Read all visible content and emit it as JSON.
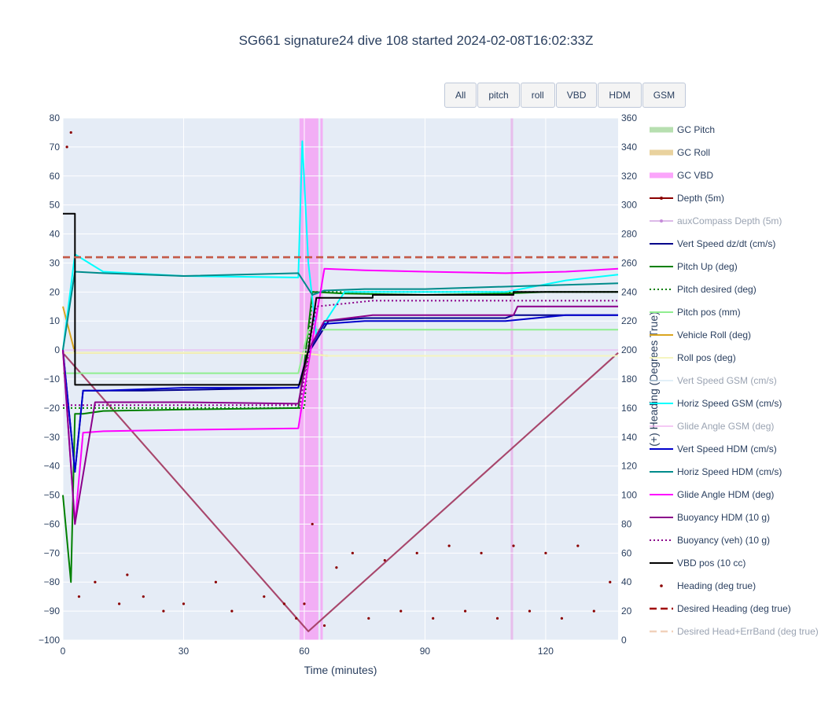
{
  "buttons": [
    "All",
    "pitch",
    "roll",
    "VBD",
    "HDM",
    "GSM"
  ],
  "chart_data": {
    "type": "line",
    "title": "SG661 signature24 dive 108 started 2024-02-08T16:02:33Z",
    "xlabel": "Time (minutes)",
    "ylabel": "",
    "y2label": "(+) Heading (Degrees True)",
    "xlim": [
      0,
      138
    ],
    "ylim": [
      -100,
      80
    ],
    "y2lim": [
      0,
      360
    ],
    "x_ticks": [
      0,
      30,
      60,
      90,
      120
    ],
    "y_ticks": [
      80,
      70,
      60,
      50,
      40,
      30,
      20,
      10,
      0,
      -10,
      -20,
      -30,
      -40,
      -50,
      -60,
      -70,
      -80,
      -90,
      -100
    ],
    "y2_ticks": [
      360,
      340,
      320,
      300,
      280,
      260,
      240,
      220,
      200,
      180,
      160,
      140,
      120,
      100,
      80,
      60,
      40,
      20,
      0
    ],
    "grid": true,
    "legend_position": "right",
    "shaded_bands": [
      {
        "name": "GC VBD",
        "x_start": 58.8,
        "x_end": 63.5,
        "color": "#f5a3f5"
      },
      {
        "name": "GC VBD",
        "x_start": 64.0,
        "x_end": 64.6,
        "color": "#f5a3f5"
      },
      {
        "name": "GC VBD",
        "x_start": 111.3,
        "x_end": 111.9,
        "color": "#e7b5ea"
      }
    ],
    "series": [
      {
        "name": "GC Pitch",
        "style": "band",
        "color": "#b7dfb0"
      },
      {
        "name": "GC Roll",
        "style": "band",
        "color": "#e9d29e"
      },
      {
        "name": "GC VBD",
        "style": "band",
        "color": "#fba5fb"
      },
      {
        "name": "Depth (5m)",
        "style": "line",
        "color": "#8b0000",
        "x": [
          0,
          61,
          138
        ],
        "y": [
          -1,
          -97,
          -1
        ]
      },
      {
        "name": "auxCompass Depth (5m)",
        "style": "line",
        "color": "#c58bd9",
        "dim": true,
        "x": [
          0,
          61,
          138
        ],
        "y": [
          -1,
          -97,
          -1
        ]
      },
      {
        "name": "Vert Speed dz/dt (cm/s)",
        "style": "line",
        "color": "#00008b",
        "x": [
          0,
          3,
          5,
          10,
          20,
          40,
          58.5,
          61,
          66,
          75,
          90,
          110,
          112,
          125,
          138
        ],
        "y": [
          0,
          -42,
          -14,
          -14,
          -14,
          -13.5,
          -13,
          -1,
          10,
          11,
          11,
          11,
          12,
          12,
          12
        ]
      },
      {
        "name": "Pitch Up (deg)",
        "style": "line",
        "color": "#008000",
        "x": [
          0,
          2,
          3,
          5,
          10,
          30,
          58.5,
          60,
          62,
          70,
          90,
          110,
          120,
          138
        ],
        "y": [
          -50,
          -80,
          -22,
          -22,
          -21,
          -20.5,
          -20,
          -5,
          20,
          19.5,
          19,
          19.5,
          20,
          20
        ]
      },
      {
        "name": "Pitch desired (deg)",
        "style": "dotted",
        "color": "#008000",
        "x": [
          0,
          59,
          60,
          62,
          138
        ],
        "y": [
          -20,
          -20,
          -20,
          20,
          20
        ]
      },
      {
        "name": "Pitch pos (mm)",
        "style": "line",
        "color": "#90ee90",
        "x": [
          0,
          3,
          58.5,
          61,
          138
        ],
        "y": [
          -8,
          -8,
          -8,
          7,
          7
        ]
      },
      {
        "name": "Vehicle Roll (deg)",
        "style": "line",
        "color": "#daa520",
        "x": [
          0,
          3,
          20,
          40,
          58.5,
          66,
          90,
          120,
          138
        ],
        "y": [
          15,
          -1,
          -1,
          -1,
          -1,
          -2,
          -2,
          -2,
          -2
        ]
      },
      {
        "name": "Roll pos (deg)",
        "style": "line",
        "color": "#f5f5c0",
        "x": [
          0,
          58.5,
          66,
          138
        ],
        "y": [
          -1,
          -1,
          -2,
          -2
        ]
      },
      {
        "name": "Vert Speed GSM (cm/s)",
        "style": "line",
        "color": "#cfe6f5",
        "dim": true,
        "x": [
          0,
          138
        ],
        "y": [
          0,
          0
        ]
      },
      {
        "name": "Horiz Speed GSM (cm/s)",
        "style": "line",
        "color": "#00ffff",
        "x": [
          0,
          3,
          10,
          30,
          58.5,
          59.5,
          61,
          63,
          70,
          90,
          110,
          125,
          138
        ],
        "y": [
          0,
          33,
          27,
          25.5,
          25,
          72,
          30,
          5,
          20,
          20,
          20,
          24,
          26
        ]
      },
      {
        "name": "Glide Angle GSM (deg)",
        "style": "line",
        "color": "#f0a8f0",
        "dim": true,
        "x": [
          0,
          138
        ],
        "y": [
          0,
          0
        ]
      },
      {
        "name": "Vert Speed HDM (cm/s)",
        "style": "line",
        "color": "#0000cd",
        "x": [
          0,
          3,
          5,
          10,
          30,
          58.5,
          61,
          65,
          75,
          90,
          110,
          125,
          138
        ],
        "y": [
          0,
          -42,
          -14,
          -14,
          -13,
          -13,
          0,
          9,
          10,
          10,
          10,
          12,
          12
        ]
      },
      {
        "name": "Horiz Speed HDM (cm/s)",
        "style": "line",
        "color": "#008b8b",
        "x": [
          0,
          3,
          10,
          30,
          58.5,
          62,
          65,
          75,
          90,
          113,
          138
        ],
        "y": [
          0,
          27,
          26.5,
          25.5,
          26.5,
          19,
          20.5,
          21,
          21,
          22,
          23
        ]
      },
      {
        "name": "Glide Angle HDM (deg)",
        "style": "line",
        "color": "#ff00ff",
        "x": [
          0,
          3,
          5,
          10,
          30,
          58.5,
          61,
          65,
          75,
          90,
          110,
          125,
          138
        ],
        "y": [
          0,
          -60,
          -28.5,
          -28,
          -27.5,
          -27,
          -5,
          28,
          27.5,
          27,
          26.5,
          27,
          28
        ]
      },
      {
        "name": "Buoyancy HDM (10 g)",
        "style": "line",
        "color": "#8b008b",
        "x": [
          0,
          3,
          8,
          30,
          58.5,
          61,
          65,
          77,
          90,
          112,
          113,
          138
        ],
        "y": [
          0,
          -60,
          -18,
          -18,
          -18.5,
          0,
          10,
          12,
          12,
          12,
          15,
          15
        ]
      },
      {
        "name": "Buoyancy (veh) (10 g)",
        "style": "dotted",
        "color": "#8b008b",
        "x": [
          0,
          59,
          61,
          63,
          77,
          138
        ],
        "y": [
          -19,
          -19,
          0,
          15,
          17,
          17
        ]
      },
      {
        "name": "VBD pos (10 cc)",
        "style": "line",
        "color": "#000000",
        "x": [
          0,
          3,
          3.01,
          58.8,
          61,
          63,
          77,
          77.01,
          112,
          112.01,
          138
        ],
        "y": [
          47,
          47,
          -12,
          -12,
          0,
          18,
          18,
          19,
          19,
          20,
          20
        ]
      },
      {
        "name": "Heading (deg true)",
        "style": "markers",
        "color": "#8b0000",
        "axis": "y2",
        "x": [
          1,
          2,
          4,
          8,
          14,
          16,
          20,
          25,
          30,
          38,
          42,
          50,
          55,
          58,
          60,
          62,
          65,
          68,
          72,
          76,
          80,
          84,
          88,
          92,
          96,
          100,
          104,
          108,
          112,
          116,
          120,
          124,
          128,
          132,
          136
        ],
        "y": [
          340,
          350,
          30,
          40,
          25,
          45,
          30,
          20,
          25,
          40,
          20,
          30,
          25,
          15,
          25,
          80,
          10,
          50,
          60,
          15,
          55,
          20,
          60,
          15,
          65,
          20,
          60,
          15,
          65,
          20,
          60,
          15,
          65,
          20,
          40
        ]
      },
      {
        "name": "Desired Heading (deg true)",
        "style": "dashed",
        "color": "#a00000",
        "axis": "y2",
        "x": [
          0,
          138
        ],
        "y": [
          264,
          264
        ]
      },
      {
        "name": "Desired Head+ErrBand (deg true)",
        "style": "dashed",
        "color": "#e8b48e",
        "axis": "y2",
        "dim": true,
        "x": [
          0,
          138
        ],
        "y": [
          264,
          264
        ]
      }
    ]
  }
}
